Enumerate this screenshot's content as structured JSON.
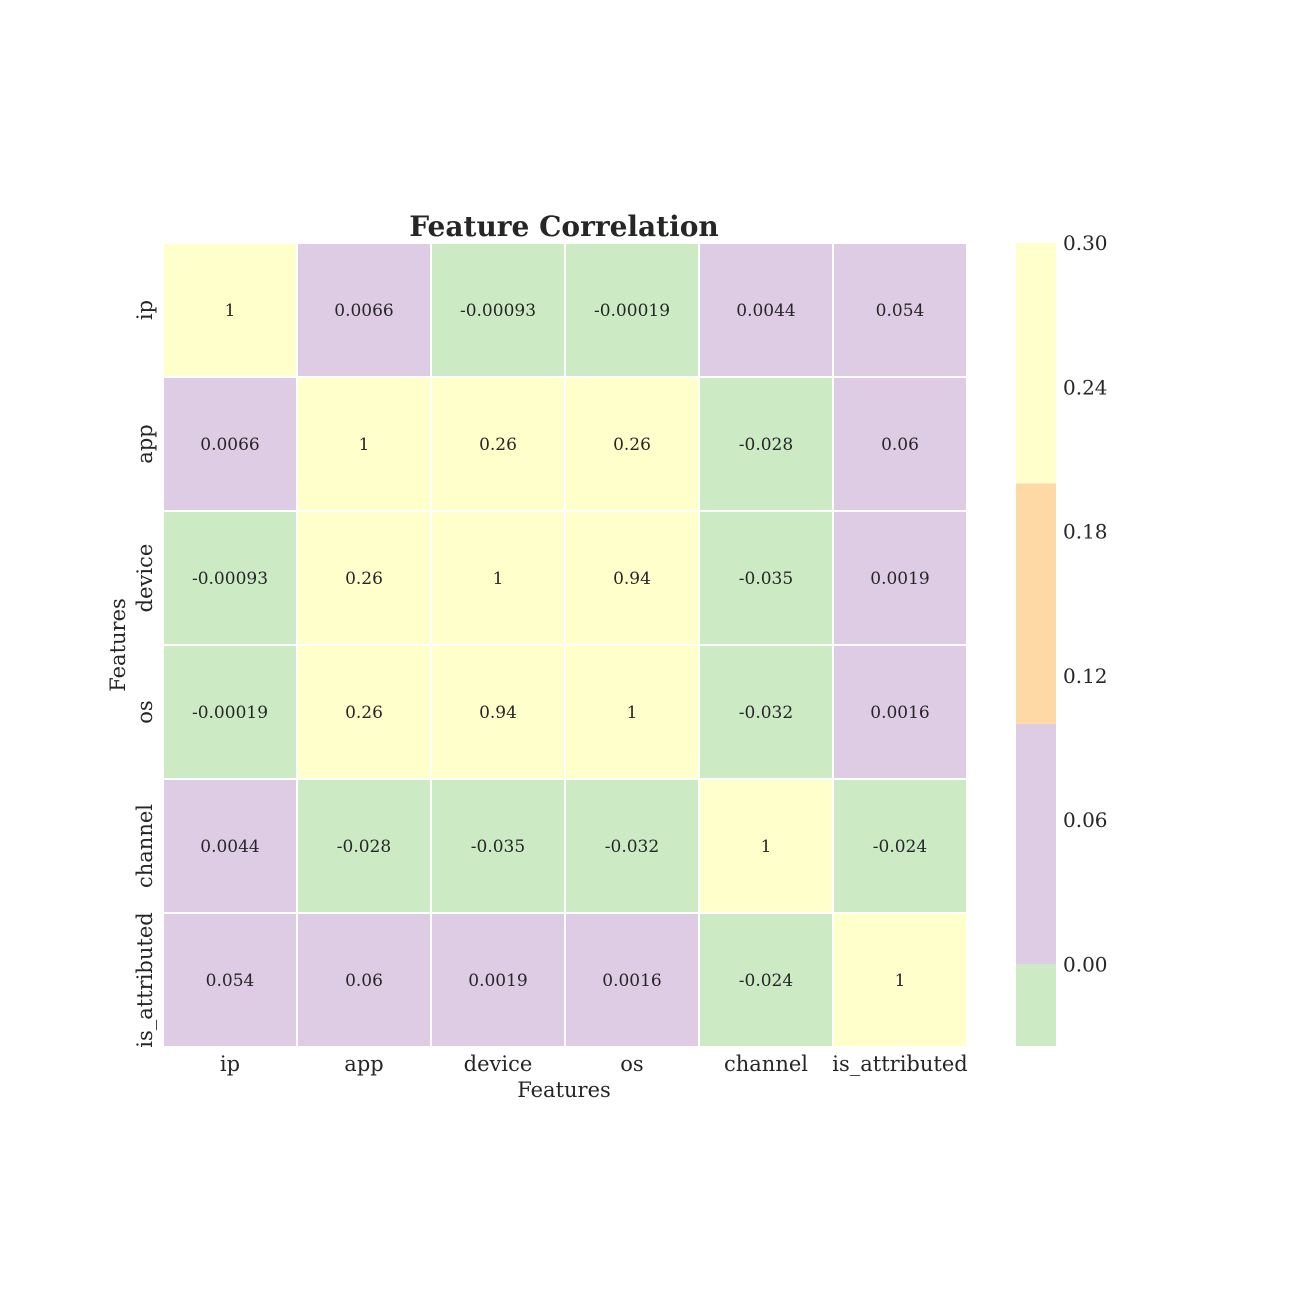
{
  "chart_data": {
    "type": "heatmap",
    "title": "Feature Correlation",
    "xlabel": "Features",
    "ylabel": "Features",
    "x_categories": [
      "ip",
      "app",
      "device",
      "os",
      "channel",
      "is_attributed"
    ],
    "y_categories": [
      "ip",
      "app",
      "device",
      "os",
      "channel",
      "is_attributed"
    ],
    "values": [
      [
        1,
        0.0066,
        -0.00093,
        -0.00019,
        0.0044,
        0.054
      ],
      [
        0.0066,
        1,
        0.26,
        0.26,
        -0.028,
        0.06
      ],
      [
        -0.00093,
        0.26,
        1,
        0.94,
        -0.035,
        0.0019
      ],
      [
        -0.00019,
        0.26,
        0.94,
        1,
        -0.032,
        0.0016
      ],
      [
        0.0044,
        -0.028,
        -0.035,
        -0.032,
        1,
        -0.024
      ],
      [
        0.054,
        0.06,
        0.0019,
        0.0016,
        -0.024,
        1
      ]
    ],
    "annotations": [
      [
        "1",
        "0.0066",
        "-0.00093",
        "-0.00019",
        "0.0044",
        "0.054"
      ],
      [
        "0.0066",
        "1",
        "0.26",
        "0.26",
        "-0.028",
        "0.06"
      ],
      [
        "-0.00093",
        "0.26",
        "1",
        "0.94",
        "-0.035",
        "0.0019"
      ],
      [
        "-0.00019",
        "0.26",
        "0.94",
        "1",
        "-0.032",
        "0.0016"
      ],
      [
        "0.0044",
        "-0.028",
        "-0.035",
        "-0.032",
        "1",
        "-0.024"
      ],
      [
        "0.054",
        "0.06",
        "0.0019",
        "0.0016",
        "-0.024",
        "1"
      ]
    ],
    "colorbar": {
      "vmin": -0.034,
      "vmax": 0.3,
      "ticks": [
        "0.00",
        "0.06",
        "0.12",
        "0.18",
        "0.24",
        "0.30"
      ],
      "tick_values": [
        0,
        0.06,
        0.12,
        0.18,
        0.24,
        0.3
      ],
      "bins": [
        {
          "from": -0.034,
          "to": 0.0,
          "color": "#ccebc5"
        },
        {
          "from": 0.0,
          "to": 0.1,
          "color": "#decbe4"
        },
        {
          "from": 0.1,
          "to": 0.2,
          "color": "#fed9a6"
        },
        {
          "from": 0.2,
          "to": 0.3,
          "color": "#ffffcc"
        }
      ]
    },
    "cell_colors": {
      "negative": "#ccebc5",
      "low": "#decbe4",
      "mid": "#fed9a6",
      "high": "#ffffcc"
    },
    "grid_line_color": "#ffffff"
  }
}
